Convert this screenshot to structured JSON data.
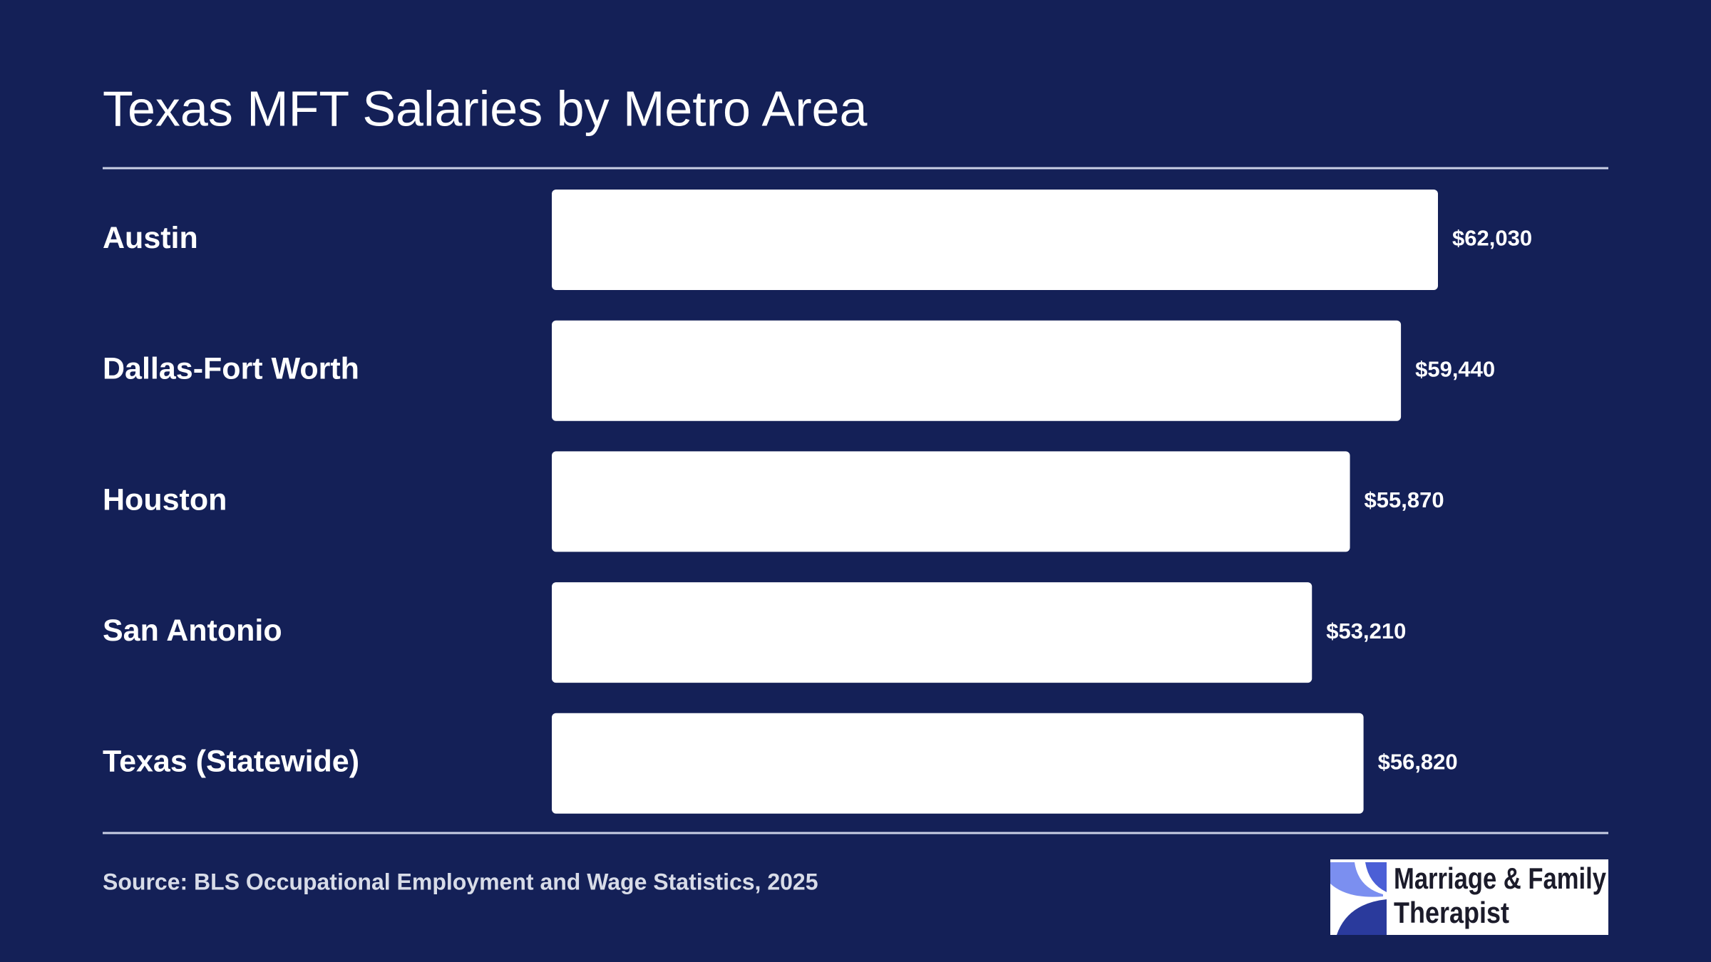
{
  "chart_data": {
    "type": "bar",
    "orientation": "horizontal",
    "title": "Texas MFT Salaries by Metro Area",
    "categories": [
      "Austin",
      "Dallas-Fort Worth",
      "Houston",
      "San Antonio",
      "Texas (Statewide)"
    ],
    "values": [
      62030,
      59440,
      55870,
      53210,
      56820
    ],
    "value_labels": [
      "$62,030",
      "$59,440",
      "$55,870",
      "$53,210",
      "$56,820"
    ],
    "color": "#ffffff",
    "source": "Source: BLS Occupational Employment and Wage Statistics, 2025"
  },
  "logo": {
    "lines": [
      "Marriage & Family",
      "Therapist"
    ]
  }
}
